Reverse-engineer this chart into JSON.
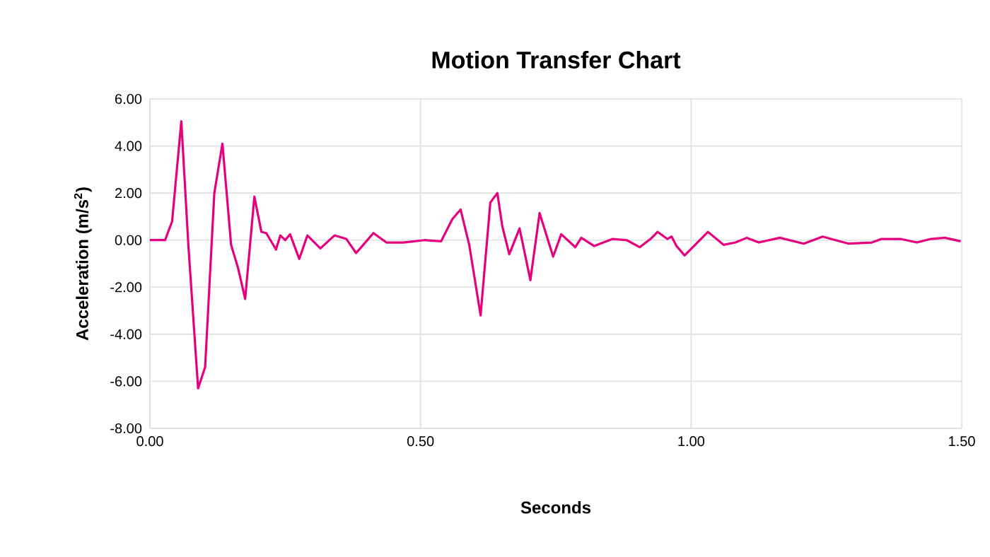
{
  "chart_data": {
    "type": "line",
    "title": "Motion Transfer Chart",
    "xlabel": "Seconds",
    "ylabel": "Acceleration (m/s$^{2}$)",
    "xlim": [
      0,
      1.5
    ],
    "ylim": [
      -8,
      6
    ],
    "xticks": [
      {
        "value": 0,
        "label": "0.00"
      },
      {
        "value": 0.5,
        "label": "0.50"
      },
      {
        "value": 1,
        "label": "1.00"
      },
      {
        "value": 1.5,
        "label": "1.50"
      }
    ],
    "yticks": [
      {
        "value": -8,
        "label": "-8.00"
      },
      {
        "value": -6,
        "label": "-6.00"
      },
      {
        "value": -4,
        "label": "-4.00"
      },
      {
        "value": -2,
        "label": "-2.00"
      },
      {
        "value": 0,
        "label": "0.00"
      },
      {
        "value": 2,
        "label": "2.00"
      },
      {
        "value": 4,
        "label": "4.00"
      },
      {
        "value": 6,
        "label": "6.00"
      }
    ],
    "grid": true,
    "series": [
      {
        "color": "#e6007e",
        "x": [
          0,
          0.028,
          0.041,
          0.058,
          0.071,
          0.089,
          0.102,
          0.119,
          0.134,
          0.15,
          0.163,
          0.176,
          0.193,
          0.206,
          0.215,
          0.233,
          0.241,
          0.25,
          0.259,
          0.276,
          0.291,
          0.315,
          0.341,
          0.363,
          0.381,
          0.413,
          0.437,
          0.468,
          0.507,
          0.538,
          0.559,
          0.574,
          0.59,
          0.611,
          0.629,
          0.642,
          0.651,
          0.664,
          0.683,
          0.703,
          0.72,
          0.745,
          0.76,
          0.786,
          0.797,
          0.821,
          0.855,
          0.881,
          0.905,
          0.925,
          0.938,
          0.956,
          0.964,
          0.973,
          0.988,
          1.031,
          1.06,
          1.082,
          1.103,
          1.125,
          1.164,
          1.208,
          1.243,
          1.291,
          1.334,
          1.352,
          1.387,
          1.417,
          1.443,
          1.469,
          1.498
        ],
        "values": [
          0,
          0,
          0.8,
          5.05,
          -0.2,
          -6.3,
          -5.4,
          2.0,
          4.1,
          -0.2,
          -1.2,
          -2.5,
          1.85,
          0.35,
          0.3,
          -0.4,
          0.2,
          0,
          0.25,
          -0.8,
          0.2,
          -0.35,
          0.2,
          0.05,
          -0.55,
          0.3,
          -0.1,
          -0.1,
          0,
          -0.05,
          0.9,
          1.3,
          -0.2,
          -3.2,
          1.6,
          2.0,
          0.6,
          -0.6,
          0.5,
          -1.7,
          1.15,
          -0.7,
          0.25,
          -0.3,
          0.1,
          -0.25,
          0.05,
          0,
          -0.3,
          0.05,
          0.35,
          0.05,
          0.15,
          -0.25,
          -0.65,
          0.35,
          -0.2,
          -0.1,
          0.1,
          -0.1,
          0.1,
          -0.15,
          0.15,
          -0.15,
          -0.1,
          0.05,
          0.05,
          -0.1,
          0.05,
          0.1,
          -0.05
        ]
      }
    ]
  }
}
